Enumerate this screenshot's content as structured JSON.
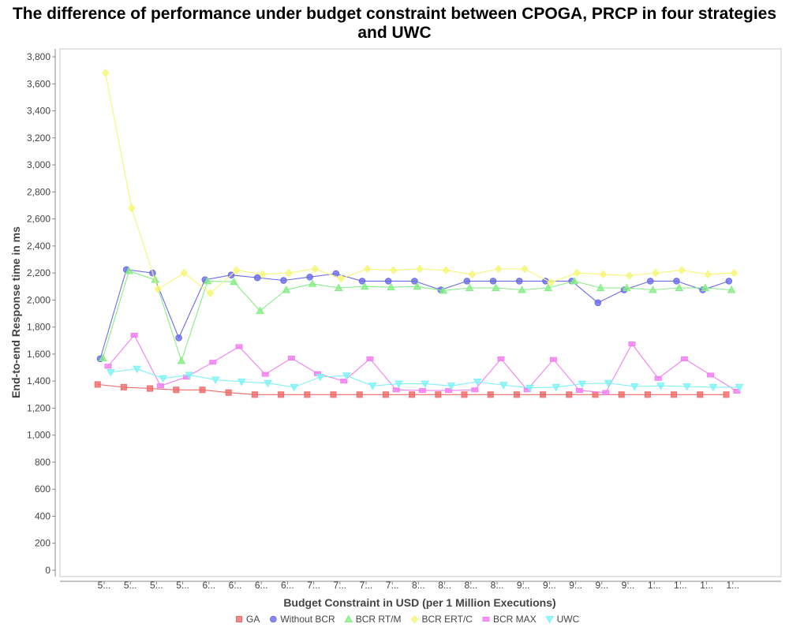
{
  "chart_data": {
    "type": "line",
    "title_line1": "The difference of performance under budget constraint between CPOGA, PRCP in  four strategies",
    "title_line2": "and UWC",
    "xlabel": "Budget Constraint in USD (per 1 Million Executions)",
    "ylabel": "End-to-end Response time in ms",
    "ylim": [
      0,
      3850
    ],
    "yticks": [
      0,
      200,
      400,
      600,
      800,
      1000,
      1200,
      1400,
      1600,
      1800,
      2000,
      2200,
      2400,
      2600,
      2800,
      3000,
      3200,
      3400,
      3600,
      3800
    ],
    "ytick_labels": [
      "0",
      "200",
      "400",
      "600",
      "800",
      "1,000",
      "1,200",
      "1,400",
      "1,600",
      "1,800",
      "2,000",
      "2,200",
      "2,400",
      "2,600",
      "2,800",
      "3,000",
      "3,200",
      "3,400",
      "3,600",
      "3,800"
    ],
    "categories": [
      "5...",
      "5...",
      "5...",
      "5...",
      "6...",
      "6...",
      "6...",
      "6...",
      "7...",
      "7...",
      "7...",
      "7...",
      "8...",
      "8...",
      "8...",
      "8...",
      "9...",
      "9...",
      "9...",
      "9...",
      "9...",
      "1...",
      "1...",
      "1...",
      "1..."
    ],
    "grid": false,
    "legend_position": "bottom",
    "series": [
      {
        "name": "GA",
        "color": "#f06a6a",
        "marker": "square",
        "offset": -0.25,
        "values": [
          1375,
          1355,
          1345,
          1335,
          1335,
          1315,
          1300,
          1300,
          1300,
          1300,
          1300,
          1300,
          1300,
          1300,
          1300,
          1300,
          1300,
          1300,
          1300,
          1300,
          1300,
          1300,
          1300,
          1300,
          1300
        ]
      },
      {
        "name": "Without BCR",
        "color": "#6b6be8",
        "marker": "circle",
        "offset": -0.15,
        "values": [
          1565,
          2225,
          2200,
          1720,
          2150,
          2185,
          2165,
          2145,
          2170,
          2195,
          2140,
          2140,
          2140,
          2075,
          2140,
          2140,
          2140,
          2140,
          2140,
          1980,
          2075,
          2140,
          2140,
          2075,
          2140
        ]
      },
      {
        "name": "BCR RT/M",
        "color": "#86ee86",
        "marker": "triangle-up",
        "offset": -0.05,
        "values": [
          1570,
          2215,
          2150,
          1550,
          2140,
          2135,
          1920,
          2075,
          2120,
          2090,
          2100,
          2095,
          2100,
          2070,
          2090,
          2090,
          2075,
          2090,
          2140,
          2090,
          2090,
          2075,
          2090,
          2090,
          2075
        ]
      },
      {
        "name": "BCR ERT/C",
        "color": "#f6f676",
        "marker": "diamond",
        "offset": 0.05,
        "values": [
          3680,
          2680,
          2080,
          2200,
          2050,
          2220,
          2190,
          2200,
          2230,
          2160,
          2230,
          2220,
          2230,
          2220,
          2190,
          2230,
          2230,
          2130,
          2200,
          2190,
          2180,
          2200,
          2220,
          2190,
          2200
        ]
      },
      {
        "name": "BCR MAX",
        "color": "#f27ef2",
        "marker": "bar",
        "offset": 0.15,
        "values": [
          1510,
          1740,
          1365,
          1430,
          1540,
          1655,
          1450,
          1570,
          1455,
          1400,
          1565,
          1335,
          1330,
          1330,
          1335,
          1565,
          1335,
          1560,
          1330,
          1315,
          1675,
          1420,
          1565,
          1445,
          1325
        ]
      },
      {
        "name": "UWC",
        "color": "#7ef2f6",
        "marker": "triangle-down",
        "offset": 0.25,
        "values": [
          1465,
          1490,
          1420,
          1445,
          1410,
          1395,
          1385,
          1355,
          1430,
          1440,
          1365,
          1380,
          1380,
          1365,
          1395,
          1370,
          1350,
          1355,
          1380,
          1385,
          1360,
          1365,
          1360,
          1355,
          1355
        ]
      }
    ]
  }
}
